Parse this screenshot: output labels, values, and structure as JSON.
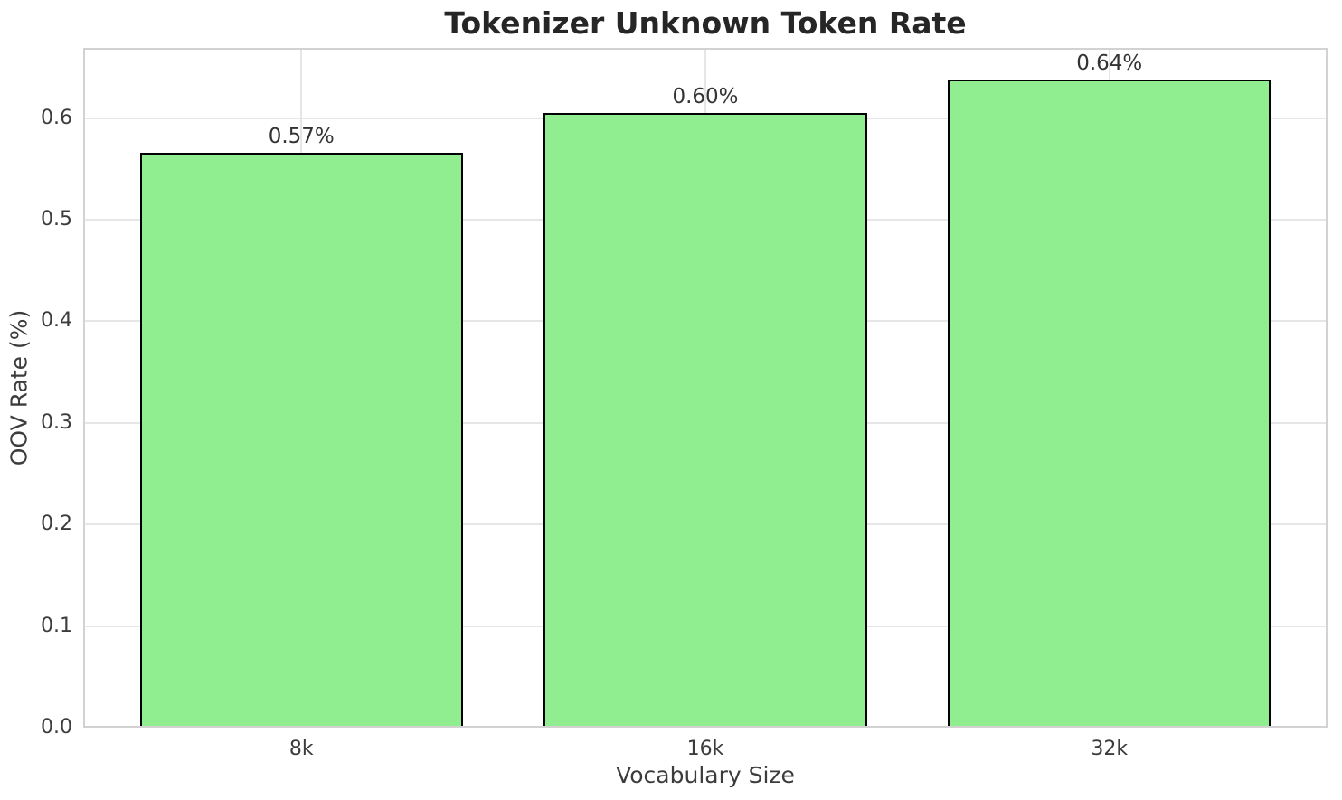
{
  "chart_data": {
    "type": "bar",
    "title": "Tokenizer Unknown Token Rate",
    "xlabel": "Vocabulary Size",
    "ylabel": "OOV Rate (%)",
    "categories": [
      "8k",
      "16k",
      "32k"
    ],
    "values": [
      0.566,
      0.605,
      0.638
    ],
    "bar_labels": [
      "0.57%",
      "0.60%",
      "0.64%"
    ],
    "ylim": [
      0,
      0.669
    ],
    "xlim": [
      -0.54,
      2.54
    ],
    "bar_width": 0.8,
    "yticks": [
      0,
      0.1,
      0.2,
      0.3,
      0.4,
      0.5,
      0.6
    ],
    "ytick_labels": [
      "0.0",
      "0.1",
      "0.2",
      "0.3",
      "0.4",
      "0.5",
      "0.6"
    ],
    "grid": true,
    "legend": false,
    "colors": {
      "bar_fill": "#90ee90",
      "bar_edge": "#000000",
      "grid_line": "#e6e6e6",
      "spine": "#d2d2d2",
      "tick_text": "#3c3c3c",
      "title_text": "#262626",
      "value_label_text": "#333333",
      "background": "#ffffff"
    }
  }
}
